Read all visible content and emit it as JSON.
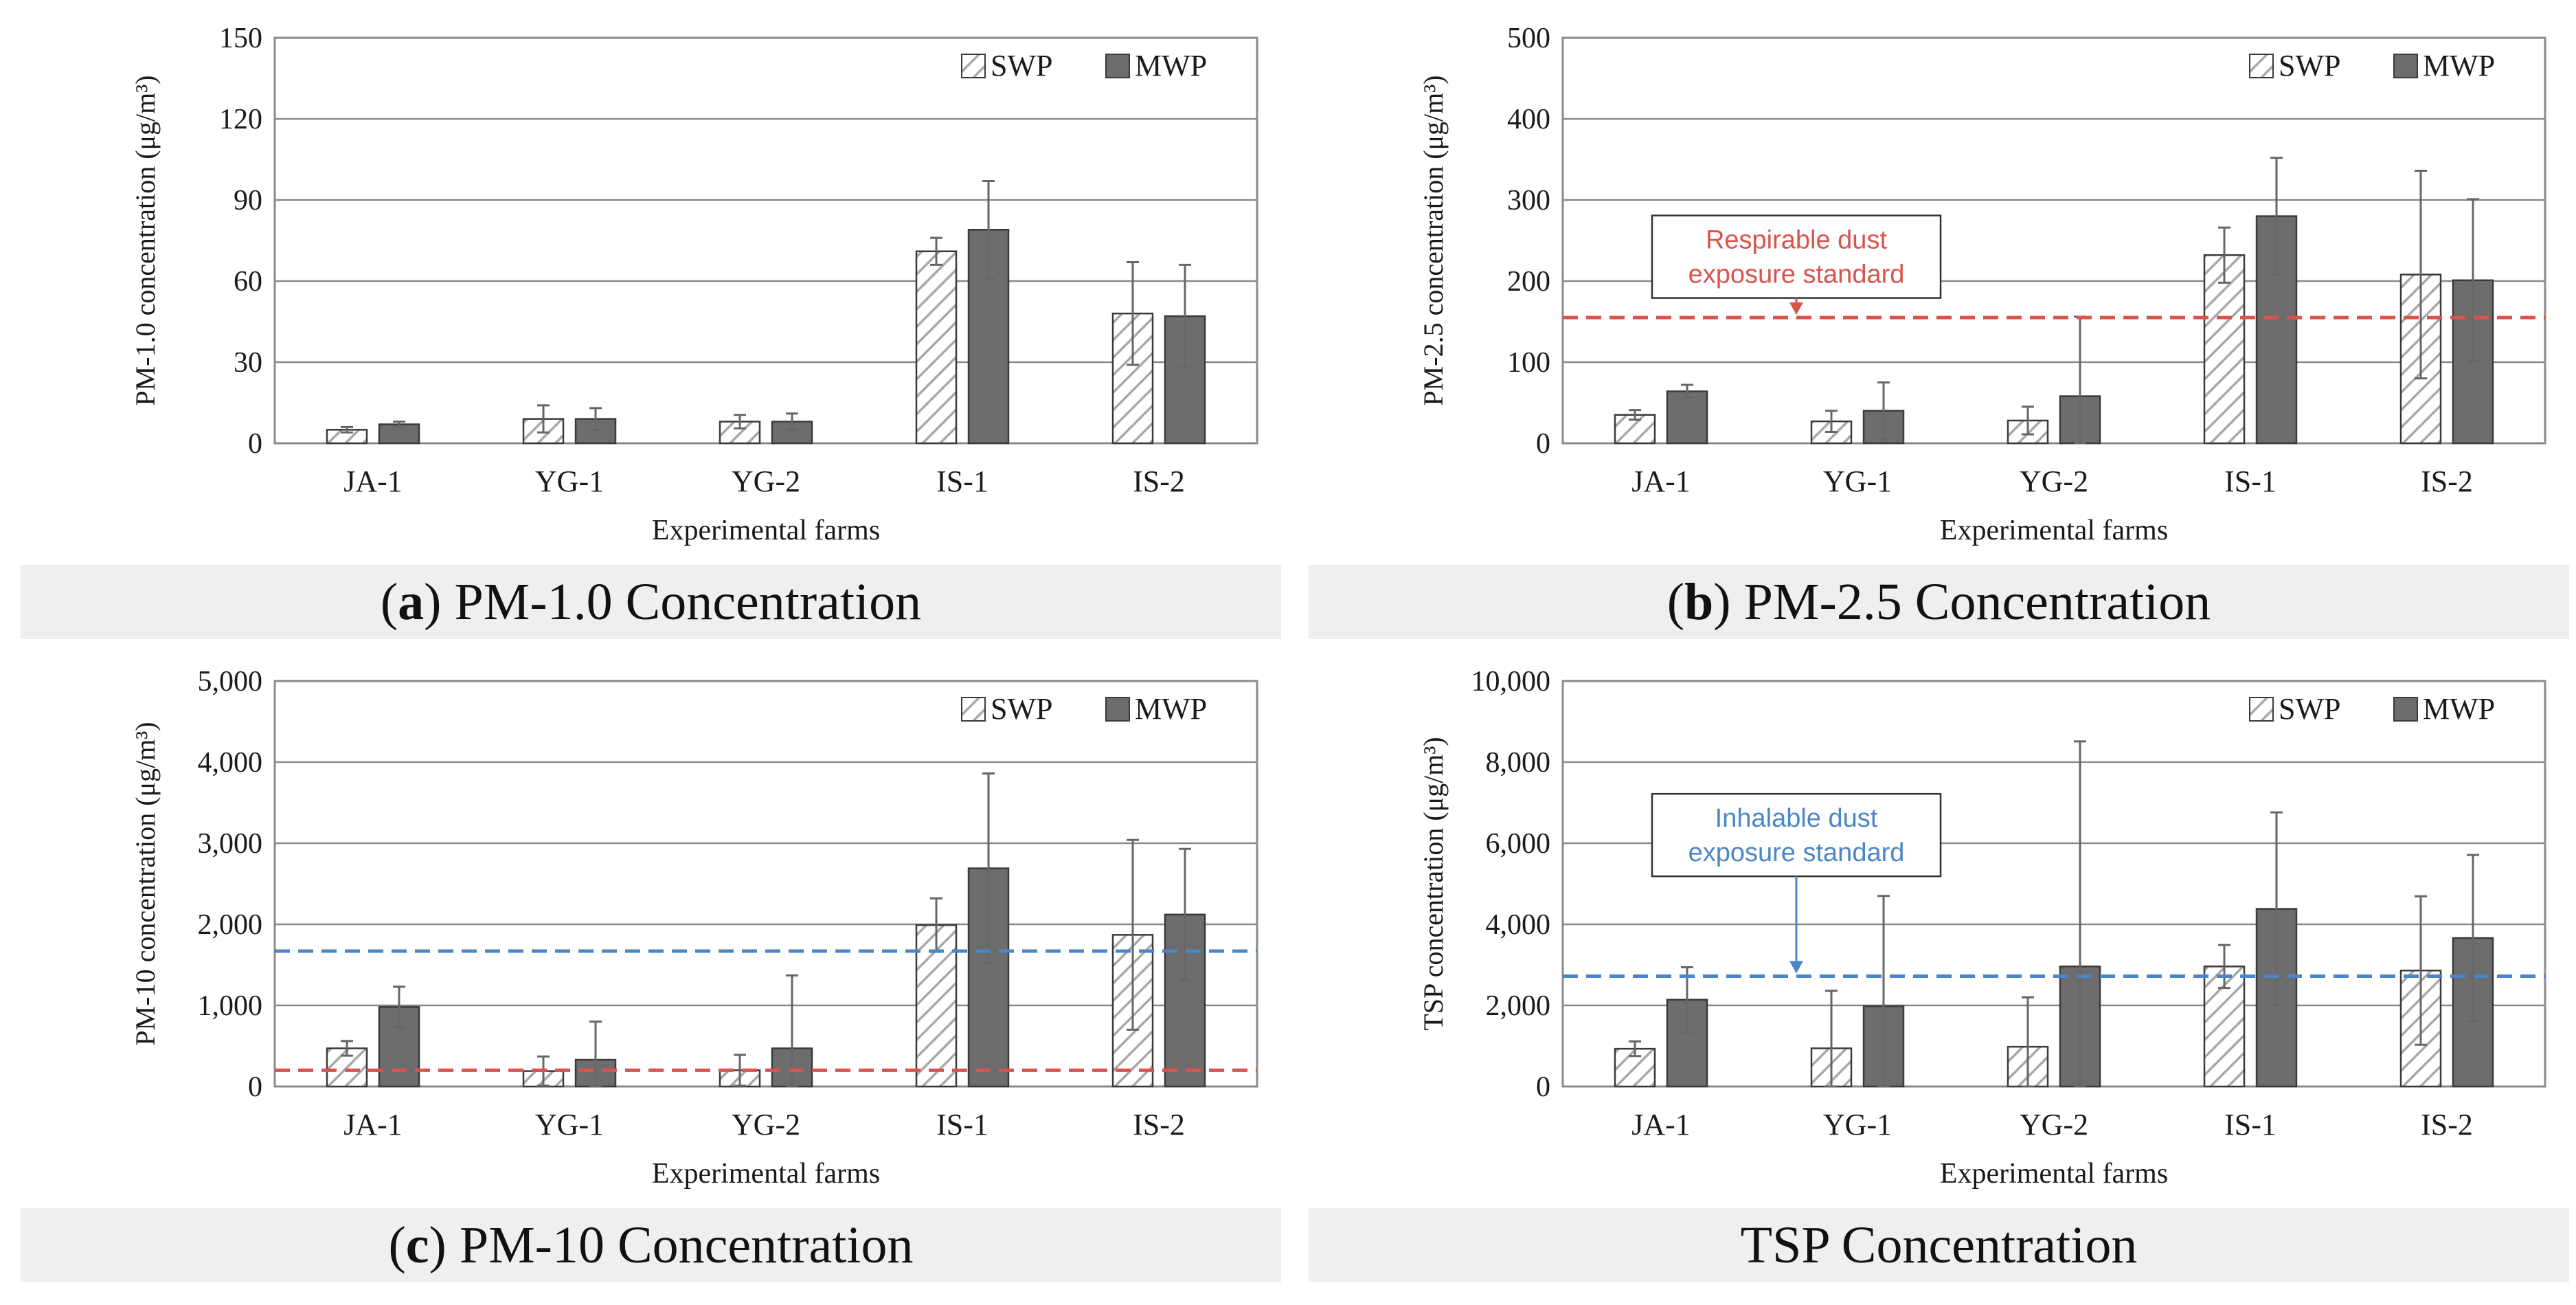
{
  "chart_data": [
    {
      "type": "bar",
      "categories": [
        "JA-1",
        "YG-1",
        "YG-2",
        "IS-1",
        "IS-2"
      ],
      "series": [
        {
          "name": "SWP",
          "values": [
            5,
            9,
            8,
            71,
            48
          ],
          "errors": [
            1,
            5,
            2.5,
            5,
            19
          ]
        },
        {
          "name": "MWP",
          "values": [
            7,
            9,
            8,
            79,
            47
          ],
          "errors": [
            1,
            4,
            3,
            18,
            19
          ]
        }
      ],
      "ylim": [
        0,
        150
      ],
      "yticks": [
        "0",
        "30",
        "60",
        "90",
        "120",
        "150"
      ],
      "xlabel": "Experimental farms",
      "ylabel": "PM-1.0 concentration (μg/m³)",
      "caption_letter": "a",
      "caption_text": "PM-1.0 Concentration",
      "reference_lines": [],
      "legend": "top-right",
      "grid": true
    },
    {
      "type": "bar",
      "categories": [
        "JA-1",
        "YG-1",
        "YG-2",
        "IS-1",
        "IS-2"
      ],
      "series": [
        {
          "name": "SWP",
          "values": [
            35,
            27,
            28,
            232,
            208
          ],
          "errors": [
            6,
            13,
            17,
            34,
            128
          ]
        },
        {
          "name": "MWP",
          "values": [
            64,
            40,
            58,
            280,
            201
          ],
          "errors": [
            8,
            35,
            98,
            72,
            100
          ]
        }
      ],
      "ylim": [
        0,
        500
      ],
      "yticks": [
        "0",
        "100",
        "200",
        "300",
        "400",
        "500"
      ],
      "xlabel": "Experimental farms",
      "ylabel": "PM-2.5 concentration (μg/m³)",
      "caption_letter": "b",
      "caption_text": "PM-2.5 Concentration",
      "reference_lines": [
        {
          "value": 155,
          "color": "#d9534f",
          "label": [
            "Respirable dust",
            "exposure standard"
          ],
          "label_x": 0.95,
          "label_center": 230,
          "arrow": true
        }
      ],
      "legend": "top-right",
      "grid": true
    },
    {
      "type": "bar",
      "categories": [
        "JA-1",
        "YG-1",
        "YG-2",
        "IS-1",
        "IS-2"
      ],
      "series": [
        {
          "name": "SWP",
          "values": [
            470,
            190,
            200,
            1990,
            1870
          ],
          "errors": [
            90,
            180,
            190,
            330,
            1170
          ]
        },
        {
          "name": "MWP",
          "values": [
            980,
            330,
            470,
            2690,
            2120
          ],
          "errors": [
            250,
            470,
            900,
            1170,
            810
          ]
        }
      ],
      "ylim": [
        0,
        5000
      ],
      "yticks": [
        "0",
        "1,000",
        "2,000",
        "3,000",
        "4,000",
        "5,000"
      ],
      "xlabel": "Experimental farms",
      "ylabel": "PM-10 concentration (μg/m³)",
      "caption_letter": "c",
      "caption_text": "PM-10 Concentration",
      "reference_lines": [
        {
          "value": 1670,
          "color": "#4a86c8"
        },
        {
          "value": 200,
          "color": "#d9534f"
        }
      ],
      "legend": "top-right",
      "grid": true
    },
    {
      "type": "bar",
      "categories": [
        "JA-1",
        "YG-1",
        "YG-2",
        "IS-1",
        "IS-2"
      ],
      "series": [
        {
          "name": "SWP",
          "values": [
            930,
            940,
            980,
            2960,
            2860
          ],
          "errors": [
            180,
            1420,
            1220,
            530,
            1830
          ]
        },
        {
          "name": "MWP",
          "values": [
            2140,
            1980,
            2960,
            4380,
            3660
          ],
          "errors": [
            800,
            2720,
            5550,
            2380,
            2050
          ]
        }
      ],
      "ylim": [
        0,
        10000
      ],
      "yticks": [
        "0",
        "2,000",
        "4,000",
        "6,000",
        "8,000",
        "10,000"
      ],
      "xlabel": "Experimental farms",
      "ylabel": "TSP concentration (μg/m³)",
      "caption_letter": "",
      "caption_text": "TSP Concentration",
      "reference_lines": [
        {
          "value": 2720,
          "color": "#4a86c8",
          "label": [
            "Inhalable dust",
            "exposure standard"
          ],
          "label_x": 0.95,
          "label_center": 6200,
          "arrow": true
        }
      ],
      "legend": "top-right",
      "grid": true
    }
  ],
  "colors": {
    "swp_hatch": "#a8a8a8",
    "mwp_fill": "#6d6d6d",
    "gridline": "#8a8a8a",
    "error_bar": "#666666",
    "caption_bg": "#efefef"
  }
}
